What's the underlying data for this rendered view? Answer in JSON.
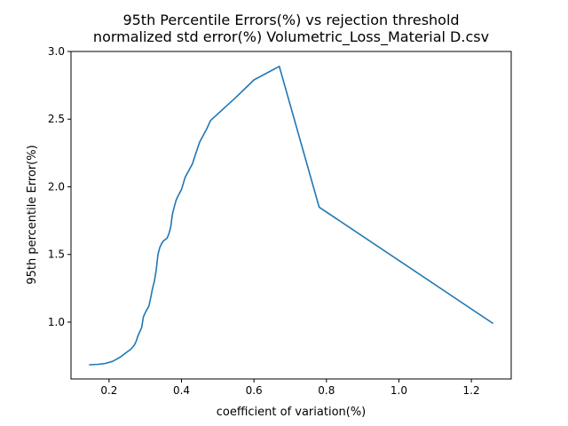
{
  "chart_data": {
    "type": "line",
    "title_lines": [
      "95th Percentile Errors(%) vs rejection threshold",
      "normalized std error(%) Volumetric_Loss_Material D.csv"
    ],
    "xlabel": "coefficient of variation(%)",
    "ylabel": "95th percentile Error(%)",
    "xlim": [
      0.095,
      1.31
    ],
    "ylim": [
      0.58,
      3.0
    ],
    "xticks": [
      0.2,
      0.4,
      0.6,
      0.8,
      1.0,
      1.2
    ],
    "xtick_labels": [
      "0.2",
      "0.4",
      "0.6",
      "0.8",
      "1.0",
      "1.2"
    ],
    "yticks": [
      1.0,
      1.5,
      2.0,
      2.5,
      3.0
    ],
    "ytick_labels": [
      "1.0",
      "1.5",
      "2.0",
      "2.5",
      "3.0"
    ],
    "grid": false,
    "colors": {
      "line": "#1f77b4"
    },
    "series": [
      {
        "x": [
          0.145,
          0.17,
          0.19,
          0.21,
          0.23,
          0.25,
          0.26,
          0.27,
          0.275,
          0.28,
          0.285,
          0.29,
          0.295,
          0.3,
          0.31,
          0.315,
          0.32,
          0.325,
          0.33,
          0.335,
          0.34,
          0.345,
          0.35,
          0.36,
          0.365,
          0.37,
          0.375,
          0.38,
          0.385,
          0.39,
          0.4,
          0.41,
          0.42,
          0.43,
          0.44,
          0.45,
          0.47,
          0.48,
          0.55,
          0.6,
          0.67,
          0.78,
          1.26
        ],
        "y": [
          0.685,
          0.688,
          0.695,
          0.71,
          0.74,
          0.78,
          0.8,
          0.83,
          0.86,
          0.9,
          0.93,
          0.96,
          1.04,
          1.07,
          1.12,
          1.18,
          1.25,
          1.3,
          1.38,
          1.5,
          1.55,
          1.58,
          1.6,
          1.62,
          1.65,
          1.7,
          1.8,
          1.85,
          1.9,
          1.93,
          1.98,
          2.07,
          2.12,
          2.17,
          2.25,
          2.33,
          2.43,
          2.49,
          2.66,
          2.79,
          2.89,
          1.85,
          0.99
        ]
      }
    ]
  }
}
